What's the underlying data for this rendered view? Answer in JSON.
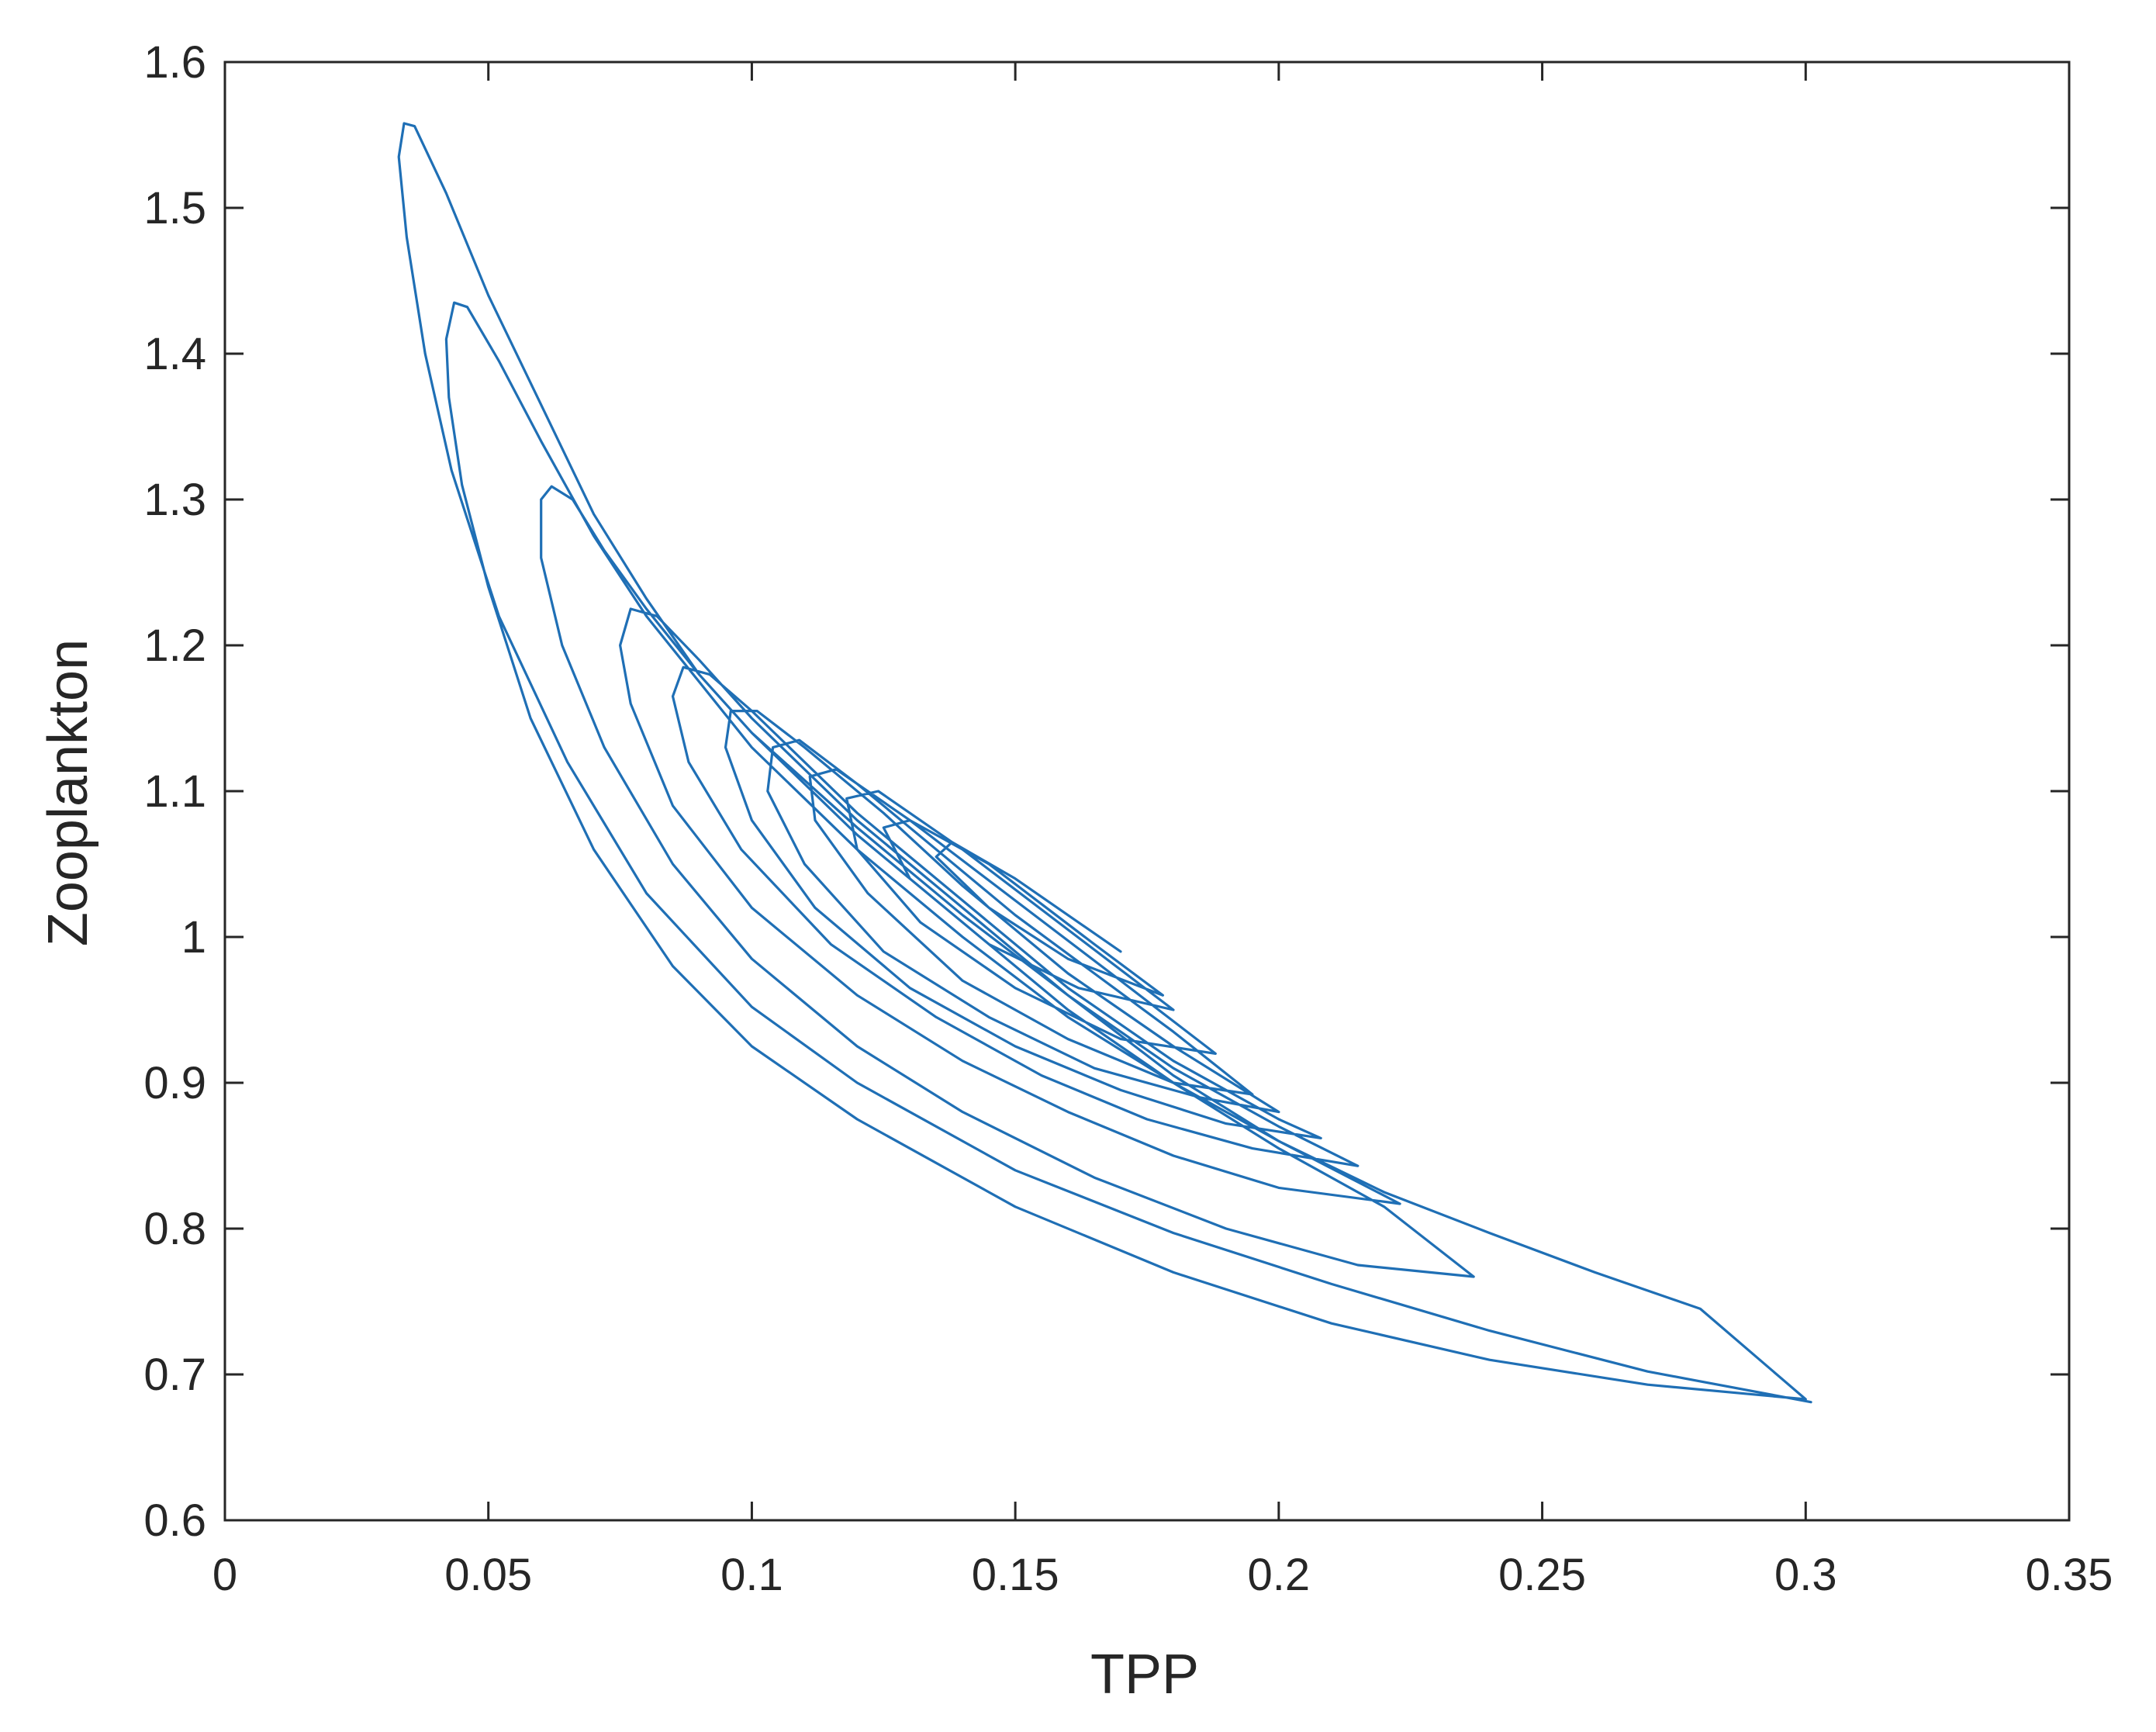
{
  "chart_data": {
    "type": "line",
    "title": "",
    "xlabel": "TPP",
    "ylabel": "Zooplankton",
    "xlim": [
      0,
      0.35
    ],
    "ylim": [
      0.6,
      1.6
    ],
    "xticks": [
      0,
      0.05,
      0.1,
      0.15,
      0.2,
      0.25,
      0.3,
      0.35
    ],
    "yticks": [
      0.6,
      0.7,
      0.8,
      0.9,
      1.0,
      1.1,
      1.2,
      1.3,
      1.4,
      1.5,
      1.6
    ],
    "xtick_labels": [
      "0",
      "0.05",
      "0.1",
      "0.15",
      "0.2",
      "0.25",
      "0.3",
      "0.35"
    ],
    "ytick_labels": [
      "0.6",
      "0.7",
      "0.8",
      "0.9",
      "1",
      "1.1",
      "1.2",
      "1.3",
      "1.4",
      "1.5",
      "1.6"
    ],
    "grid": false,
    "box": true,
    "line_color": "#1f6fb5",
    "series": [
      {
        "values": [
          [
            0.301,
            0.681
          ],
          [
            0.27,
            0.702
          ],
          [
            0.24,
            0.73
          ],
          [
            0.21,
            0.762
          ],
          [
            0.18,
            0.797
          ],
          [
            0.15,
            0.84
          ],
          [
            0.12,
            0.9
          ],
          [
            0.1,
            0.952
          ],
          [
            0.08,
            1.03
          ],
          [
            0.065,
            1.12
          ],
          [
            0.052,
            1.22
          ],
          [
            0.043,
            1.32
          ],
          [
            0.038,
            1.4
          ],
          [
            0.0345,
            1.48
          ],
          [
            0.033,
            1.535
          ],
          [
            0.034,
            1.558
          ],
          [
            0.036,
            1.556
          ],
          [
            0.042,
            1.51
          ],
          [
            0.05,
            1.44
          ],
          [
            0.06,
            1.365
          ],
          [
            0.07,
            1.29
          ],
          [
            0.08,
            1.232
          ],
          [
            0.09,
            1.18
          ],
          [
            0.1,
            1.14
          ],
          [
            0.12,
            1.07
          ],
          [
            0.14,
            1.01
          ],
          [
            0.16,
            0.95
          ],
          [
            0.18,
            0.9
          ],
          [
            0.2,
            0.86
          ],
          [
            0.22,
            0.825
          ],
          [
            0.24,
            0.797
          ],
          [
            0.26,
            0.77
          ],
          [
            0.28,
            0.745
          ],
          [
            0.3,
            0.683
          ],
          [
            0.27,
            0.693
          ],
          [
            0.24,
            0.71
          ],
          [
            0.21,
            0.735
          ],
          [
            0.18,
            0.77
          ],
          [
            0.15,
            0.815
          ],
          [
            0.12,
            0.875
          ],
          [
            0.1,
            0.925
          ],
          [
            0.085,
            0.98
          ],
          [
            0.07,
            1.06
          ],
          [
            0.058,
            1.15
          ],
          [
            0.05,
            1.24
          ],
          [
            0.045,
            1.31
          ],
          [
            0.0425,
            1.37
          ],
          [
            0.042,
            1.41
          ],
          [
            0.0435,
            1.435
          ],
          [
            0.046,
            1.432
          ],
          [
            0.052,
            1.395
          ],
          [
            0.06,
            1.34
          ],
          [
            0.07,
            1.275
          ],
          [
            0.08,
            1.22
          ],
          [
            0.09,
            1.175
          ],
          [
            0.1,
            1.13
          ],
          [
            0.12,
            1.06
          ],
          [
            0.14,
            1.0
          ],
          [
            0.16,
            0.945
          ],
          [
            0.18,
            0.9
          ],
          [
            0.2,
            0.855
          ],
          [
            0.22,
            0.815
          ],
          [
            0.237,
            0.767
          ],
          [
            0.215,
            0.775
          ],
          [
            0.19,
            0.8
          ],
          [
            0.165,
            0.835
          ],
          [
            0.14,
            0.88
          ],
          [
            0.12,
            0.925
          ],
          [
            0.1,
            0.985
          ],
          [
            0.085,
            1.05
          ],
          [
            0.072,
            1.13
          ],
          [
            0.064,
            1.2
          ],
          [
            0.06,
            1.26
          ],
          [
            0.06,
            1.3
          ],
          [
            0.062,
            1.309
          ],
          [
            0.066,
            1.3
          ],
          [
            0.072,
            1.265
          ],
          [
            0.08,
            1.225
          ],
          [
            0.09,
            1.18
          ],
          [
            0.1,
            1.14
          ],
          [
            0.12,
            1.075
          ],
          [
            0.14,
            1.015
          ],
          [
            0.16,
            0.96
          ],
          [
            0.18,
            0.905
          ],
          [
            0.2,
            0.86
          ],
          [
            0.223,
            0.817
          ],
          [
            0.2,
            0.828
          ],
          [
            0.18,
            0.85
          ],
          [
            0.16,
            0.88
          ],
          [
            0.14,
            0.915
          ],
          [
            0.12,
            0.96
          ],
          [
            0.1,
            1.02
          ],
          [
            0.085,
            1.09
          ],
          [
            0.077,
            1.16
          ],
          [
            0.075,
            1.2
          ],
          [
            0.077,
            1.225
          ],
          [
            0.082,
            1.22
          ],
          [
            0.09,
            1.19
          ],
          [
            0.1,
            1.15
          ],
          [
            0.12,
            1.08
          ],
          [
            0.14,
            1.02
          ],
          [
            0.16,
            0.96
          ],
          [
            0.18,
            0.91
          ],
          [
            0.2,
            0.87
          ],
          [
            0.215,
            0.843
          ],
          [
            0.195,
            0.855
          ],
          [
            0.175,
            0.875
          ],
          [
            0.155,
            0.905
          ],
          [
            0.135,
            0.945
          ],
          [
            0.115,
            0.995
          ],
          [
            0.098,
            1.06
          ],
          [
            0.088,
            1.12
          ],
          [
            0.085,
            1.165
          ],
          [
            0.087,
            1.185
          ],
          [
            0.092,
            1.18
          ],
          [
            0.1,
            1.155
          ],
          [
            0.12,
            1.085
          ],
          [
            0.14,
            1.025
          ],
          [
            0.16,
            0.965
          ],
          [
            0.18,
            0.915
          ],
          [
            0.2,
            0.875
          ],
          [
            0.208,
            0.862
          ],
          [
            0.19,
            0.872
          ],
          [
            0.17,
            0.895
          ],
          [
            0.15,
            0.925
          ],
          [
            0.13,
            0.965
          ],
          [
            0.112,
            1.02
          ],
          [
            0.1,
            1.08
          ],
          [
            0.095,
            1.13
          ],
          [
            0.096,
            1.155
          ],
          [
            0.101,
            1.155
          ],
          [
            0.11,
            1.13
          ],
          [
            0.125,
            1.085
          ],
          [
            0.14,
            1.035
          ],
          [
            0.16,
            0.975
          ],
          [
            0.18,
            0.925
          ],
          [
            0.2,
            0.88
          ],
          [
            0.185,
            0.89
          ],
          [
            0.165,
            0.91
          ],
          [
            0.145,
            0.945
          ],
          [
            0.125,
            0.99
          ],
          [
            0.11,
            1.05
          ],
          [
            0.103,
            1.1
          ],
          [
            0.104,
            1.13
          ],
          [
            0.109,
            1.135
          ],
          [
            0.12,
            1.105
          ],
          [
            0.135,
            1.06
          ],
          [
            0.15,
            1.015
          ],
          [
            0.165,
            0.975
          ],
          [
            0.18,
            0.935
          ],
          [
            0.195,
            0.892
          ],
          [
            0.18,
            0.9
          ],
          [
            0.16,
            0.93
          ],
          [
            0.14,
            0.97
          ],
          [
            0.122,
            1.03
          ],
          [
            0.112,
            1.08
          ],
          [
            0.111,
            1.11
          ],
          [
            0.116,
            1.115
          ],
          [
            0.13,
            1.08
          ],
          [
            0.15,
            1.025
          ],
          [
            0.17,
            0.97
          ],
          [
            0.188,
            0.92
          ],
          [
            0.17,
            0.93
          ],
          [
            0.15,
            0.965
          ],
          [
            0.132,
            1.01
          ],
          [
            0.12,
            1.06
          ],
          [
            0.118,
            1.095
          ],
          [
            0.124,
            1.1
          ],
          [
            0.14,
            1.06
          ],
          [
            0.16,
            1.005
          ],
          [
            0.18,
            0.95
          ],
          [
            0.162,
            0.965
          ],
          [
            0.145,
            0.995
          ],
          [
            0.13,
            1.04
          ],
          [
            0.125,
            1.075
          ],
          [
            0.13,
            1.08
          ],
          [
            0.145,
            1.05
          ],
          [
            0.165,
            0.995
          ],
          [
            0.178,
            0.96
          ],
          [
            0.16,
            0.985
          ],
          [
            0.145,
            1.02
          ],
          [
            0.135,
            1.055
          ],
          [
            0.138,
            1.065
          ],
          [
            0.15,
            1.04
          ],
          [
            0.17,
            0.99
          ]
        ]
      }
    ]
  }
}
